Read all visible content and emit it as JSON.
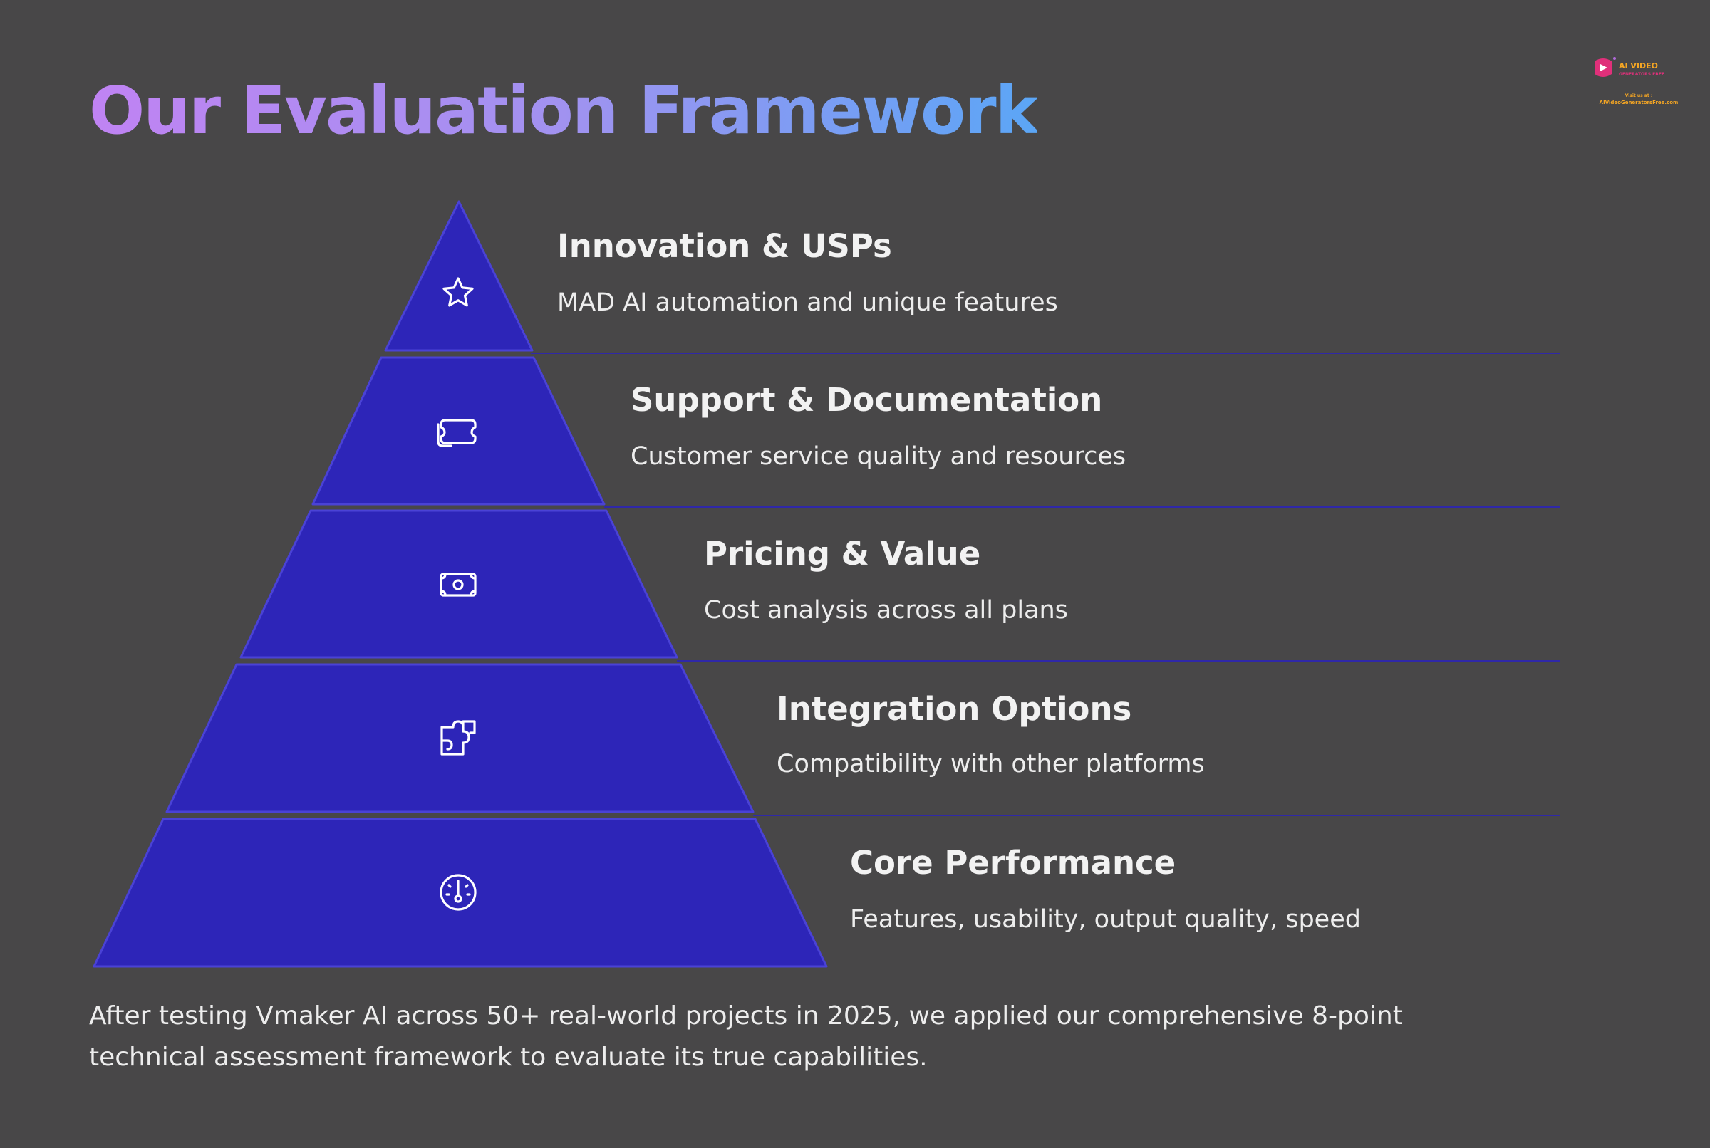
{
  "title": "Our Evaluation Framework",
  "brand": {
    "logo_line1": "AI VIDEO",
    "logo_line2": "Visit us at :",
    "logo_line3": "AIVideoGeneratorsFree.com"
  },
  "colors": {
    "background": "#484748",
    "tier_fill": "#2d25b8",
    "tier_stroke": "#4a42d6",
    "divider": "#2f28a8",
    "title_gradient": [
      "#c083f3",
      "#5ba6f6"
    ]
  },
  "tiers": [
    {
      "icon": "star-icon",
      "heading": "Innovation & USPs",
      "description": "MAD AI automation and unique features"
    },
    {
      "icon": "ticket-icon",
      "heading": "Support & Documentation",
      "description": "Customer service quality and resources"
    },
    {
      "icon": "money-icon",
      "heading": "Pricing & Value",
      "description": "Cost analysis across all plans"
    },
    {
      "icon": "puzzle-icon",
      "heading": "Integration Options",
      "description": "Compatibility with other platforms"
    },
    {
      "icon": "gauge-icon",
      "heading": "Core Performance",
      "description": "Features, usability, output quality, speed"
    }
  ],
  "footer": "After testing Vmaker AI across 50+ real-world projects in 2025, we applied our comprehensive 8-point technical assessment framework to evaluate its true capabilities."
}
